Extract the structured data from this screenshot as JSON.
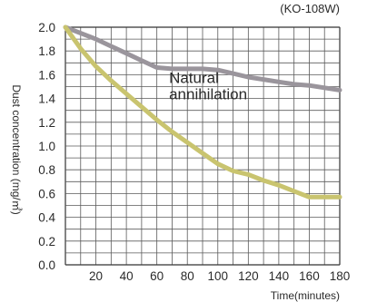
{
  "chart_data": {
    "type": "line",
    "model_label": "(KO-108W)",
    "xlabel": "Time(minutes)",
    "ylabel": "Dust concentration (mg/㎥)",
    "xlim": [
      0,
      180
    ],
    "ylim": [
      0,
      2.0
    ],
    "x_ticks": [
      20,
      40,
      60,
      80,
      100,
      120,
      140,
      160,
      180
    ],
    "x_tick_labels": [
      "20",
      "40",
      "60",
      "80",
      "100",
      "120",
      "140",
      "160",
      "180"
    ],
    "y_ticks": [
      0,
      0.2,
      0.4,
      0.6,
      0.8,
      1.0,
      1.2,
      1.4,
      1.6,
      1.8,
      2.0
    ],
    "y_tick_labels": [
      "0.0",
      "0.2",
      "0.4",
      "0.6",
      "0.8",
      "1.0",
      "1.2",
      "1.4",
      "1.6",
      "1.8",
      "2.0"
    ],
    "grid": true,
    "annotations": [
      {
        "lines": [
          "Natural",
          "annihilation"
        ],
        "x": 68,
        "y": 1.53
      }
    ],
    "series": [
      {
        "color": "#9a959c",
        "x": [
          0,
          10,
          20,
          30,
          40,
          50,
          60,
          70,
          80,
          90,
          100,
          110,
          120,
          130,
          140,
          150,
          160,
          170,
          180
        ],
        "values": [
          2.0,
          1.95,
          1.9,
          1.84,
          1.78,
          1.72,
          1.66,
          1.65,
          1.65,
          1.65,
          1.64,
          1.61,
          1.58,
          1.56,
          1.54,
          1.52,
          1.51,
          1.49,
          1.47
        ]
      },
      {
        "color": "#c9c46f",
        "x": [
          0,
          10,
          20,
          30,
          40,
          50,
          60,
          70,
          80,
          90,
          100,
          110,
          120,
          130,
          140,
          150,
          160,
          170,
          180
        ],
        "values": [
          2.0,
          1.82,
          1.67,
          1.55,
          1.44,
          1.33,
          1.22,
          1.12,
          1.03,
          0.94,
          0.85,
          0.79,
          0.76,
          0.71,
          0.67,
          0.62,
          0.57,
          0.57,
          0.57
        ]
      }
    ]
  }
}
